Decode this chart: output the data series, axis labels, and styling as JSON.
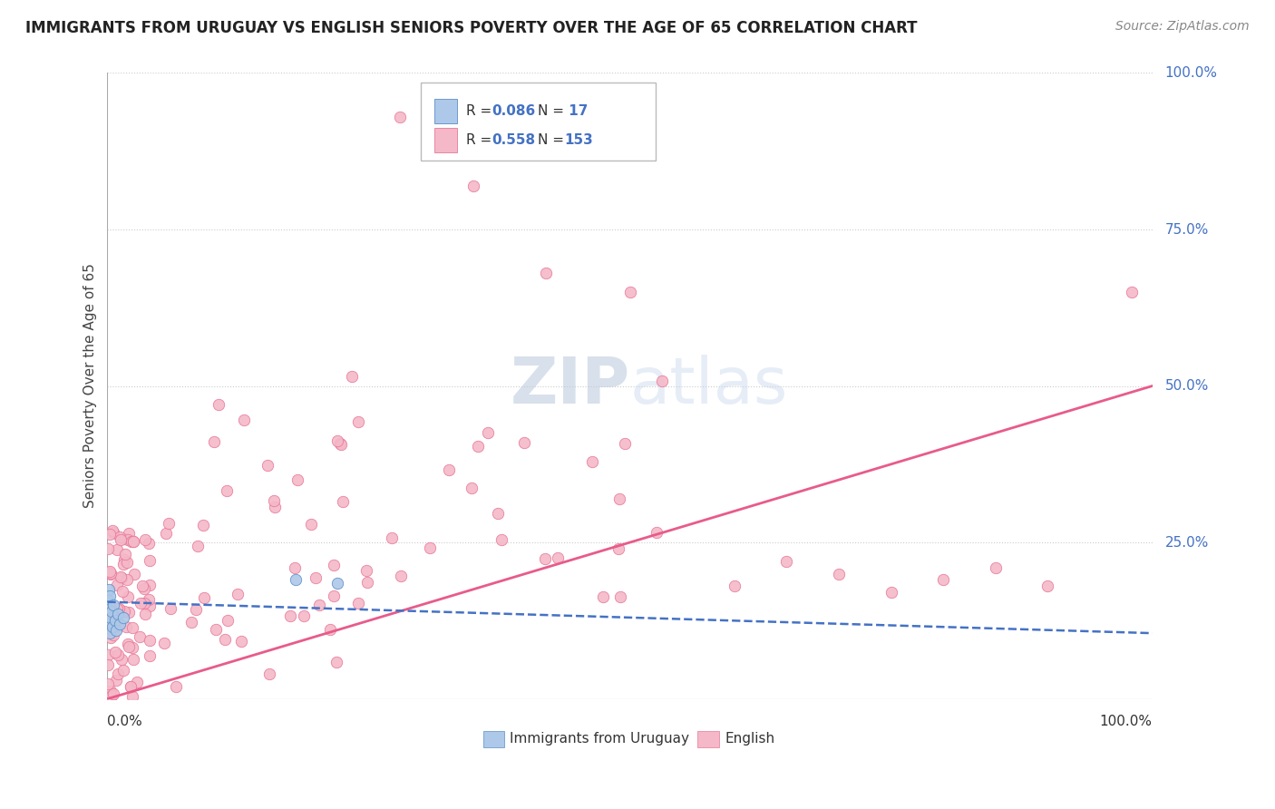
{
  "title": "IMMIGRANTS FROM URUGUAY VS ENGLISH SENIORS POVERTY OVER THE AGE OF 65 CORRELATION CHART",
  "source": "Source: ZipAtlas.com",
  "ylabel": "Seniors Poverty Over the Age of 65",
  "legend_r1": "R = 0.086",
  "legend_n1": "N =  17",
  "legend_r2": "R = 0.558",
  "legend_n2": "N = 153",
  "legend_label1": "Immigrants from Uruguay",
  "legend_label2": "English",
  "color_blue_fill": "#adc8e8",
  "color_pink_fill": "#f4b8c8",
  "color_blue_edge": "#5b8dc8",
  "color_pink_edge": "#e87898",
  "color_blue_line": "#4472c4",
  "color_pink_line": "#e85b8a",
  "color_r_value": "#4472c4",
  "background_color": "#ffffff",
  "grid_color": "#cccccc",
  "ytick_color": "#4472c4",
  "watermark_color": "#c8d8ec",
  "eng_slope": 0.5,
  "eng_intercept": 0.0,
  "uru_slope": -0.05,
  "uru_intercept": 0.155
}
